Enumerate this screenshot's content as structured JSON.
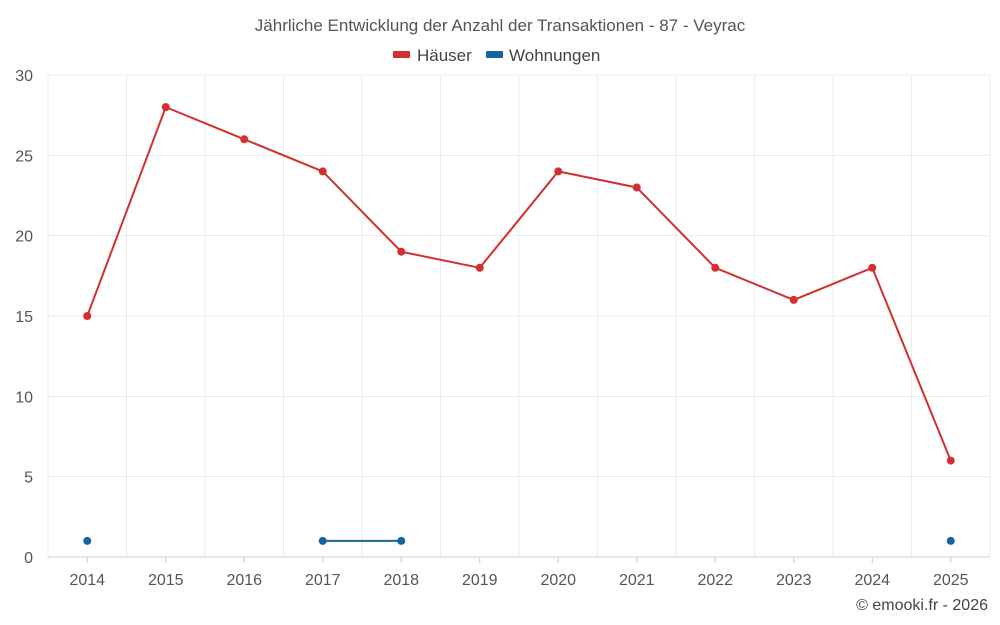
{
  "chart_data": {
    "type": "line",
    "title": "Jährliche Entwicklung der Anzahl der Transaktionen - 87 - Veyrac",
    "categories": [
      "2014",
      "2015",
      "2016",
      "2017",
      "2018",
      "2019",
      "2020",
      "2021",
      "2022",
      "2023",
      "2024",
      "2025"
    ],
    "series": [
      {
        "name": "Häuser",
        "color": "#d32f2f",
        "values": [
          15,
          28,
          26,
          24,
          19,
          18,
          24,
          23,
          18,
          16,
          18,
          6
        ]
      },
      {
        "name": "Wohnungen",
        "color": "#1565a0",
        "values": [
          1,
          null,
          null,
          1,
          1,
          null,
          null,
          null,
          null,
          null,
          null,
          1
        ]
      }
    ],
    "yticks": [
      "0",
      "5",
      "10",
      "15",
      "20",
      "25",
      "30"
    ],
    "ylim": [
      0,
      30
    ],
    "legend_position": "top-center",
    "grid": true
  },
  "footer": "© emooki.fr - 2026"
}
